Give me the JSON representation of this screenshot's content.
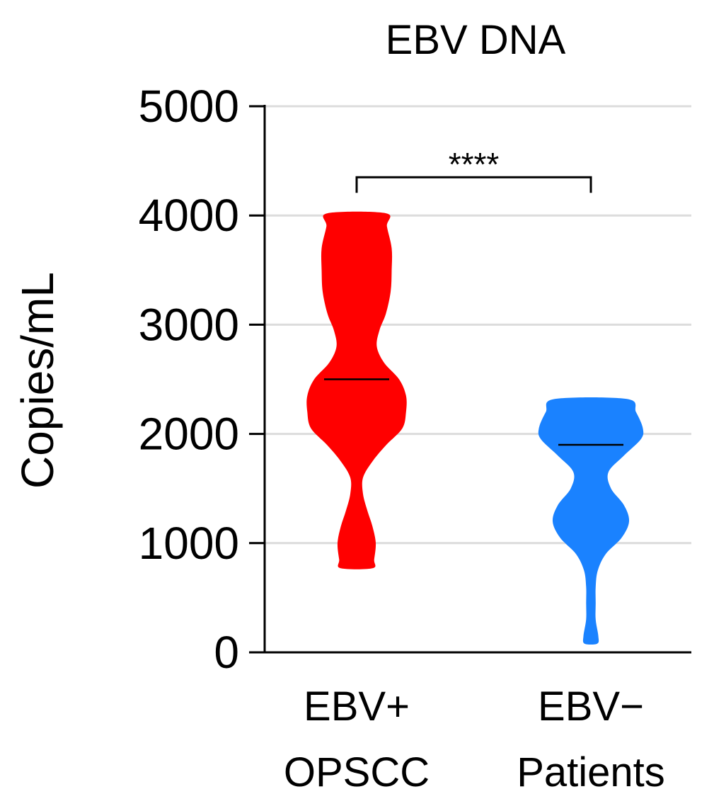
{
  "chart_data": {
    "type": "violin",
    "title": "EBV DNA",
    "xlabel": "",
    "ylabel": "Copies/mL",
    "ylim": [
      0,
      5000
    ],
    "yticks": [
      0,
      1000,
      2000,
      3000,
      4000,
      5000
    ],
    "ytick_labels": [
      "0",
      "1000",
      "2000",
      "3000",
      "4000",
      "5000"
    ],
    "grid": true,
    "categories": [
      {
        "line1": "EBV+",
        "line2": "OPSCC"
      },
      {
        "line1": "EBV−",
        "line2": "Patients"
      }
    ],
    "series": [
      {
        "color": "#ff0000",
        "median": 2500,
        "min": 770,
        "max": 4020,
        "density": [
          [
            770,
            0.3
          ],
          [
            850,
            0.33
          ],
          [
            1000,
            0.36
          ],
          [
            1150,
            0.3
          ],
          [
            1300,
            0.2
          ],
          [
            1450,
            0.12
          ],
          [
            1600,
            0.12
          ],
          [
            1750,
            0.3
          ],
          [
            1900,
            0.56
          ],
          [
            2050,
            0.86
          ],
          [
            2200,
            0.93
          ],
          [
            2350,
            0.93
          ],
          [
            2500,
            0.8
          ],
          [
            2650,
            0.52
          ],
          [
            2800,
            0.38
          ],
          [
            2950,
            0.43
          ],
          [
            3100,
            0.55
          ],
          [
            3300,
            0.64
          ],
          [
            3500,
            0.66
          ],
          [
            3700,
            0.66
          ],
          [
            3900,
            0.57
          ],
          [
            4020,
            0.55
          ]
        ]
      },
      {
        "color": "#1a82ff",
        "median": 1900,
        "min": 80,
        "max": 2320,
        "density": [
          [
            80,
            0.12
          ],
          [
            150,
            0.14
          ],
          [
            300,
            0.09
          ],
          [
            450,
            0.09
          ],
          [
            600,
            0.09
          ],
          [
            750,
            0.13
          ],
          [
            900,
            0.28
          ],
          [
            1050,
            0.58
          ],
          [
            1200,
            0.72
          ],
          [
            1350,
            0.62
          ],
          [
            1500,
            0.38
          ],
          [
            1650,
            0.33
          ],
          [
            1800,
            0.62
          ],
          [
            1950,
            0.94
          ],
          [
            2050,
            0.98
          ],
          [
            2200,
            0.85
          ],
          [
            2320,
            0.68
          ]
        ]
      }
    ],
    "significance": {
      "label": "****",
      "from": 0,
      "to": 1,
      "y": 4350
    }
  }
}
